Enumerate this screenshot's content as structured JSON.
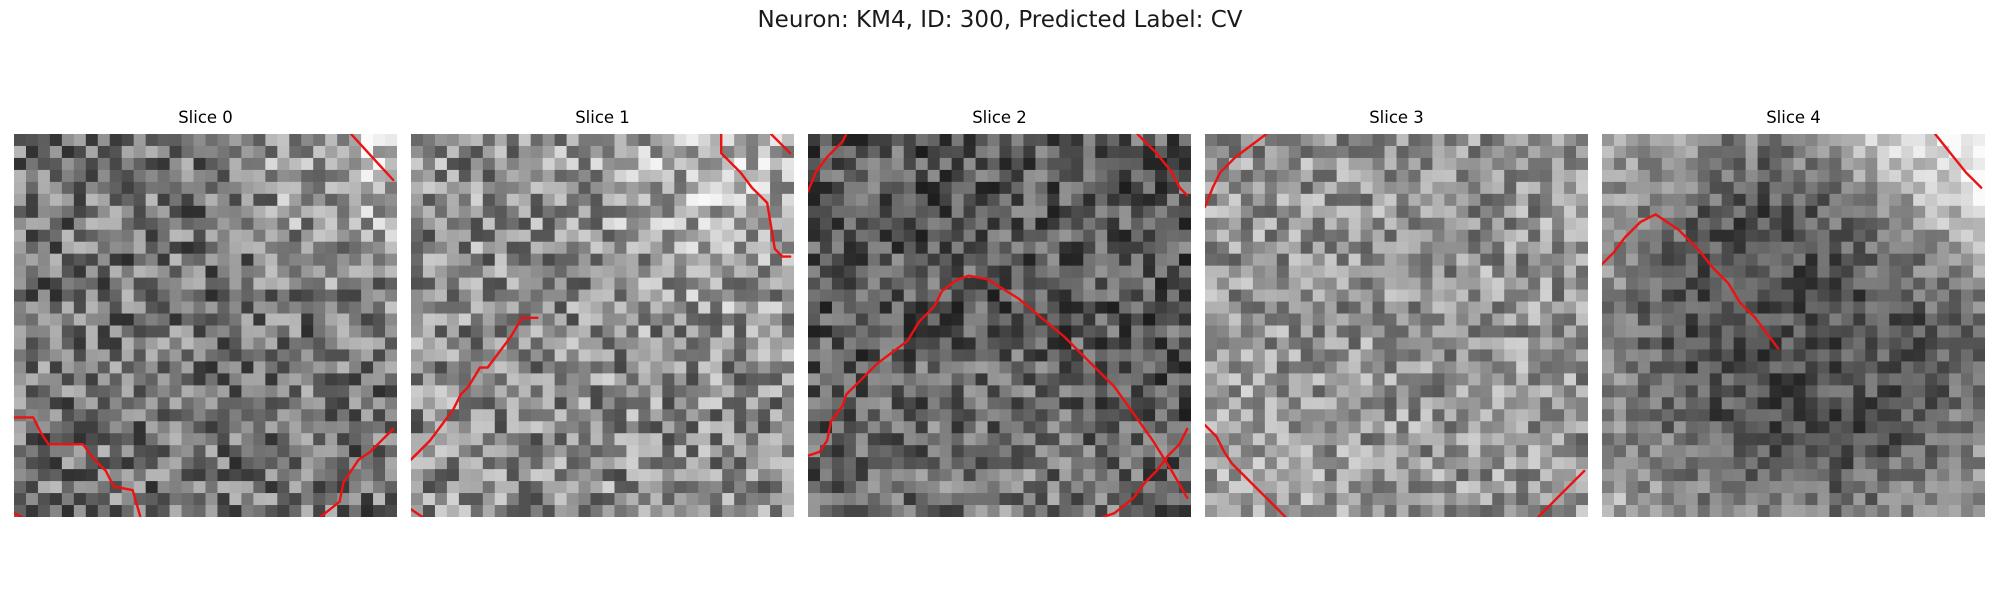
{
  "figure": {
    "title": "Neuron: KM4, ID: 300, Predicted Label: CV",
    "contour_color": "#ee1111",
    "grid_size": 32,
    "panels": [
      {
        "title": "Slice 0",
        "texture": {
          "base": 0.45,
          "noise": 0.28,
          "seed": 11,
          "brightCorner": [
            1.0,
            0.0,
            0.35
          ]
        },
        "contours": [
          [
            [
              0.0,
              0.99
            ],
            [
              0.02,
              1.0
            ]
          ],
          [
            [
              0.88,
              0.0
            ],
            [
              0.99,
              0.12
            ]
          ],
          [
            [
              0.0,
              0.74
            ],
            [
              0.05,
              0.74
            ],
            [
              0.07,
              0.78
            ],
            [
              0.09,
              0.81
            ],
            [
              0.18,
              0.81
            ],
            [
              0.21,
              0.85
            ],
            [
              0.24,
              0.88
            ],
            [
              0.26,
              0.92
            ],
            [
              0.31,
              0.93
            ],
            [
              0.33,
              1.0
            ]
          ],
          [
            [
              0.8,
              1.0
            ],
            [
              0.85,
              0.96
            ],
            [
              0.86,
              0.91
            ],
            [
              0.88,
              0.88
            ],
            [
              0.9,
              0.85
            ],
            [
              0.93,
              0.83
            ],
            [
              0.99,
              0.77
            ]
          ]
        ]
      },
      {
        "title": "Slice 1",
        "texture": {
          "base": 0.55,
          "noise": 0.28,
          "seed": 23,
          "brightCorner": [
            0.85,
            0.05,
            0.2
          ]
        },
        "contours": [
          [
            [
              0.0,
              0.98
            ],
            [
              0.03,
              1.0
            ]
          ],
          [
            [
              0.94,
              0.0
            ],
            [
              0.99,
              0.05
            ]
          ],
          [
            [
              0.0,
              0.85
            ],
            [
              0.05,
              0.8
            ],
            [
              0.08,
              0.76
            ],
            [
              0.11,
              0.72
            ],
            [
              0.13,
              0.68
            ],
            [
              0.15,
              0.66
            ],
            [
              0.18,
              0.61
            ],
            [
              0.2,
              0.61
            ],
            [
              0.23,
              0.57
            ],
            [
              0.26,
              0.53
            ],
            [
              0.29,
              0.48
            ],
            [
              0.33,
              0.48
            ]
          ],
          [
            [
              0.81,
              0.0
            ],
            [
              0.81,
              0.05
            ],
            [
              0.86,
              0.1
            ],
            [
              0.89,
              0.14
            ],
            [
              0.93,
              0.18
            ],
            [
              0.94,
              0.24
            ],
            [
              0.95,
              0.3
            ],
            [
              0.97,
              0.32
            ],
            [
              0.99,
              0.32
            ]
          ]
        ]
      },
      {
        "title": "Slice 2",
        "texture": {
          "base": 0.35,
          "noise": 0.24,
          "seed": 37,
          "brightCorner": [
            0.5,
            1.0,
            0.15
          ]
        },
        "contours": [
          [
            [
              0.0,
              0.84
            ],
            [
              0.03,
              0.83
            ],
            [
              0.05,
              0.8
            ],
            [
              0.06,
              0.75
            ],
            [
              0.09,
              0.71
            ],
            [
              0.1,
              0.68
            ],
            [
              0.13,
              0.65
            ],
            [
              0.16,
              0.62
            ],
            [
              0.18,
              0.6
            ],
            [
              0.22,
              0.57
            ],
            [
              0.26,
              0.54
            ],
            [
              0.29,
              0.49
            ],
            [
              0.33,
              0.45
            ],
            [
              0.35,
              0.41
            ],
            [
              0.39,
              0.38
            ],
            [
              0.42,
              0.37
            ],
            [
              0.47,
              0.38
            ],
            [
              0.55,
              0.43
            ],
            [
              0.61,
              0.48
            ],
            [
              0.67,
              0.53
            ],
            [
              0.74,
              0.6
            ],
            [
              0.8,
              0.66
            ],
            [
              0.85,
              0.73
            ],
            [
              0.9,
              0.8
            ],
            [
              0.95,
              0.88
            ],
            [
              0.99,
              0.95
            ]
          ],
          [
            [
              0.0,
              0.15
            ],
            [
              0.02,
              0.1
            ],
            [
              0.05,
              0.06
            ],
            [
              0.09,
              0.02
            ],
            [
              0.1,
              0.0
            ]
          ],
          [
            [
              0.86,
              0.0
            ],
            [
              0.91,
              0.05
            ],
            [
              0.95,
              0.1
            ],
            [
              0.97,
              0.14
            ],
            [
              0.99,
              0.16
            ]
          ],
          [
            [
              0.77,
              1.0
            ],
            [
              0.8,
              0.99
            ],
            [
              0.85,
              0.95
            ],
            [
              0.88,
              0.91
            ],
            [
              0.91,
              0.88
            ],
            [
              0.94,
              0.84
            ],
            [
              0.97,
              0.81
            ],
            [
              0.99,
              0.77
            ]
          ]
        ]
      },
      {
        "title": "Slice 3",
        "texture": {
          "base": 0.58,
          "noise": 0.24,
          "seed": 53,
          "brightCorner": [
            0.0,
            1.0,
            0.1
          ]
        },
        "contours": [
          [
            [
              0.0,
              0.76
            ],
            [
              0.03,
              0.79
            ],
            [
              0.05,
              0.83
            ],
            [
              0.07,
              0.86
            ],
            [
              0.1,
              0.89
            ],
            [
              0.13,
              0.92
            ],
            [
              0.16,
              0.95
            ],
            [
              0.19,
              0.98
            ],
            [
              0.21,
              1.0
            ]
          ],
          [
            [
              0.0,
              0.19
            ],
            [
              0.02,
              0.14
            ],
            [
              0.04,
              0.1
            ],
            [
              0.08,
              0.06
            ],
            [
              0.12,
              0.03
            ],
            [
              0.16,
              0.0
            ]
          ],
          [
            [
              0.87,
              1.0
            ],
            [
              0.91,
              0.96
            ],
            [
              0.95,
              0.92
            ],
            [
              0.99,
              0.88
            ]
          ]
        ]
      },
      {
        "title": "Slice 4",
        "texture": {
          "base": 0.32,
          "noise": 0.18,
          "seed": 71,
          "brightCorner": [
            1.0,
            0.0,
            0.5
          ]
        },
        "contours": [
          [
            [
              0.0,
              0.34
            ],
            [
              0.03,
              0.31
            ],
            [
              0.06,
              0.27
            ],
            [
              0.1,
              0.23
            ],
            [
              0.14,
              0.21
            ],
            [
              0.2,
              0.25
            ],
            [
              0.25,
              0.3
            ],
            [
              0.29,
              0.35
            ],
            [
              0.33,
              0.39
            ],
            [
              0.36,
              0.44
            ],
            [
              0.4,
              0.48
            ],
            [
              0.43,
              0.52
            ],
            [
              0.46,
              0.56
            ]
          ],
          [
            [
              0.87,
              0.0
            ],
            [
              0.91,
              0.05
            ],
            [
              0.95,
              0.1
            ],
            [
              0.99,
              0.14
            ]
          ]
        ]
      }
    ]
  }
}
